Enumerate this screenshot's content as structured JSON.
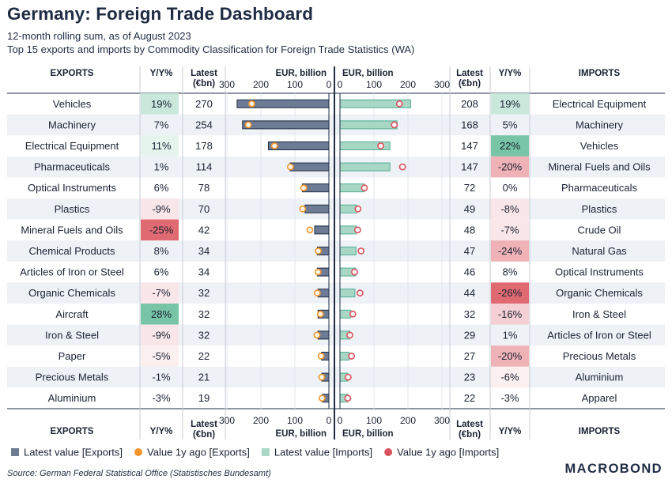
{
  "title": "Germany: Foreign Trade Dashboard",
  "subtitle_1": "12-month rolling sum, as of August 2023",
  "subtitle_2": "Top 15 exports and imports by Commodity Classification for Foreign Trade Statistics (WA)",
  "source": "Source: German Federal Statistical Office (Statistisches Bundesamt)",
  "brand": "MACROBOND",
  "colors": {
    "export_bar": "#6e7b94",
    "export_bar_edge": "#1f2c44",
    "import_bar": "#a9d7c6",
    "import_bar_edge": "#4fae92",
    "export_dot": "#f2952b",
    "import_dot": "#d9535f",
    "pos_strong": "#6ec09f",
    "pos_weak": "#e9f5ef",
    "neg_strong": "#e06a72",
    "neg_weak": "#f8e3e5",
    "grid": "#c9cdd6",
    "axis": "#1f2c44"
  },
  "chart_data": {
    "type": "bar",
    "title": "Germany: Foreign Trade Dashboard",
    "headers": {
      "exports": "EXPORTS",
      "imports": "IMPORTS",
      "yy": "Y/Y%",
      "latest_1": "Latest",
      "latest_2": "(€bn)",
      "axis_label": "EUR, billion"
    },
    "axis_ticks": [
      300,
      200,
      100,
      0
    ],
    "axis_ticks_right": [
      0,
      100,
      200,
      300
    ],
    "xlim": [
      0,
      300
    ],
    "exports": {
      "categories": [
        "Vehicles",
        "Machinery",
        "Electrical Equipment",
        "Pharmaceuticals",
        "Optical Instruments",
        "Plastics",
        "Mineral Fuels and Oils",
        "Chemical Products",
        "Articles of Iron or Steel",
        "Organic Chemicals",
        "Aircraft",
        "Iron & Steel",
        "Paper",
        "Precious Metals",
        "Aluminium"
      ],
      "yy_labels": [
        "19%",
        "7%",
        "11%",
        "1%",
        "6%",
        "-9%",
        "-25%",
        "8%",
        "6%",
        "-7%",
        "28%",
        "-9%",
        "-5%",
        "-1%",
        "-3%"
      ],
      "yy": [
        19,
        7,
        11,
        1,
        6,
        -9,
        -25,
        8,
        6,
        -7,
        28,
        -9,
        -5,
        -1,
        -3
      ],
      "latest": [
        270,
        254,
        178,
        114,
        78,
        70,
        42,
        34,
        34,
        32,
        32,
        32,
        22,
        21,
        19
      ],
      "year_ago": [
        227,
        237,
        160,
        113,
        74,
        77,
        56,
        31,
        32,
        34,
        25,
        35,
        23,
        21,
        20
      ]
    },
    "imports": {
      "categories": [
        "Electrical Equipment",
        "Machinery",
        "Vehicles",
        "Mineral Fuels and Oils",
        "Pharmaceuticals",
        "Plastics",
        "Crude Oil",
        "Natural Gas",
        "Optical Instruments",
        "Organic Chemicals",
        "Iron & Steel",
        "Articles of Iron or Steel",
        "Precious Metals",
        "Aluminium",
        "Apparel"
      ],
      "yy_labels": [
        "19%",
        "5%",
        "22%",
        "-20%",
        "0%",
        "-8%",
        "-7%",
        "-24%",
        "8%",
        "-26%",
        "-16%",
        "1%",
        "-20%",
        "-6%",
        "-3%"
      ],
      "yy": [
        19,
        5,
        22,
        -20,
        0,
        -8,
        -7,
        -24,
        8,
        -26,
        -16,
        1,
        -20,
        -6,
        -3
      ],
      "latest": [
        208,
        168,
        147,
        147,
        72,
        49,
        48,
        47,
        46,
        44,
        32,
        29,
        27,
        23,
        22
      ],
      "year_ago": [
        175,
        160,
        120,
        184,
        72,
        53,
        52,
        62,
        43,
        59,
        38,
        29,
        34,
        24,
        23
      ]
    },
    "legend": [
      {
        "label": "Latest value [Exports]",
        "kind": "bar",
        "color": "#6e7b94"
      },
      {
        "label": "Value 1y ago [Exports]",
        "kind": "dot",
        "color": "#f2952b"
      },
      {
        "label": "Latest value [Imports]",
        "kind": "bar",
        "color": "#a9d7c6"
      },
      {
        "label": "Value 1y ago [Imports]",
        "kind": "dot",
        "color": "#d9535f"
      }
    ]
  }
}
